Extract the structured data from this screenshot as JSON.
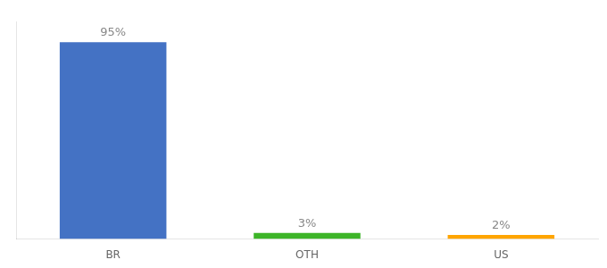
{
  "chart_data": {
    "type": "bar",
    "categories": [
      "BR",
      "OTH",
      "US"
    ],
    "values": [
      95,
      3,
      2
    ],
    "value_labels": [
      "95%",
      "3%",
      "2%"
    ],
    "data_labels": true,
    "colors": [
      "#4472C4",
      "#3DB528",
      "#FFA500"
    ],
    "ylim": [
      0,
      105
    ],
    "tick_labels": "x",
    "grid": false
  }
}
